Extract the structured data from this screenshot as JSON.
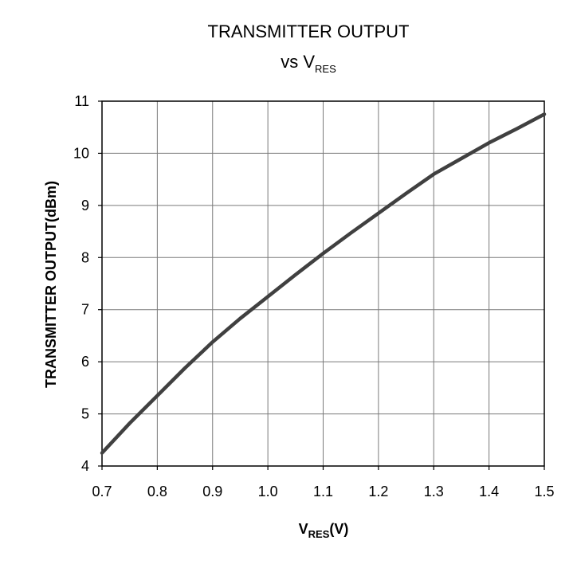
{
  "chart_data": {
    "type": "line",
    "title_line1": "TRANSMITTER OUTPUT",
    "title_line2_prefix": "vs V",
    "title_line2_sub": "RES",
    "xlabel_main": "V",
    "xlabel_sub": "RES",
    "xlabel_suffix": "(V)",
    "ylabel": "TRANSMITTER OUTPUT(dBm)",
    "xlim": [
      0.7,
      1.5
    ],
    "ylim": [
      4,
      11
    ],
    "x_ticks": [
      0.7,
      0.8,
      0.9,
      1.0,
      1.1,
      1.2,
      1.3,
      1.4,
      1.5
    ],
    "x_tick_labels": [
      "0.7",
      "0.8",
      "0.9",
      "1.0",
      "1.1",
      "1.2",
      "1.3",
      "1.4",
      "1.5"
    ],
    "y_ticks": [
      4,
      5,
      6,
      7,
      8,
      9,
      10,
      11
    ],
    "y_tick_labels": [
      "4",
      "5",
      "6",
      "7",
      "8",
      "9",
      "10",
      "11"
    ],
    "grid": true,
    "legend": "none",
    "series": [
      {
        "color": "#404040",
        "x": [
          0.7,
          0.75,
          0.8,
          0.85,
          0.9,
          0.95,
          1.0,
          1.05,
          1.1,
          1.15,
          1.2,
          1.25,
          1.3,
          1.35,
          1.4,
          1.45,
          1.5
        ],
        "y": [
          4.25,
          4.82,
          5.35,
          5.88,
          6.38,
          6.83,
          7.25,
          7.67,
          8.08,
          8.47,
          8.85,
          9.23,
          9.6,
          9.9,
          10.2,
          10.47,
          10.75
        ]
      }
    ]
  }
}
